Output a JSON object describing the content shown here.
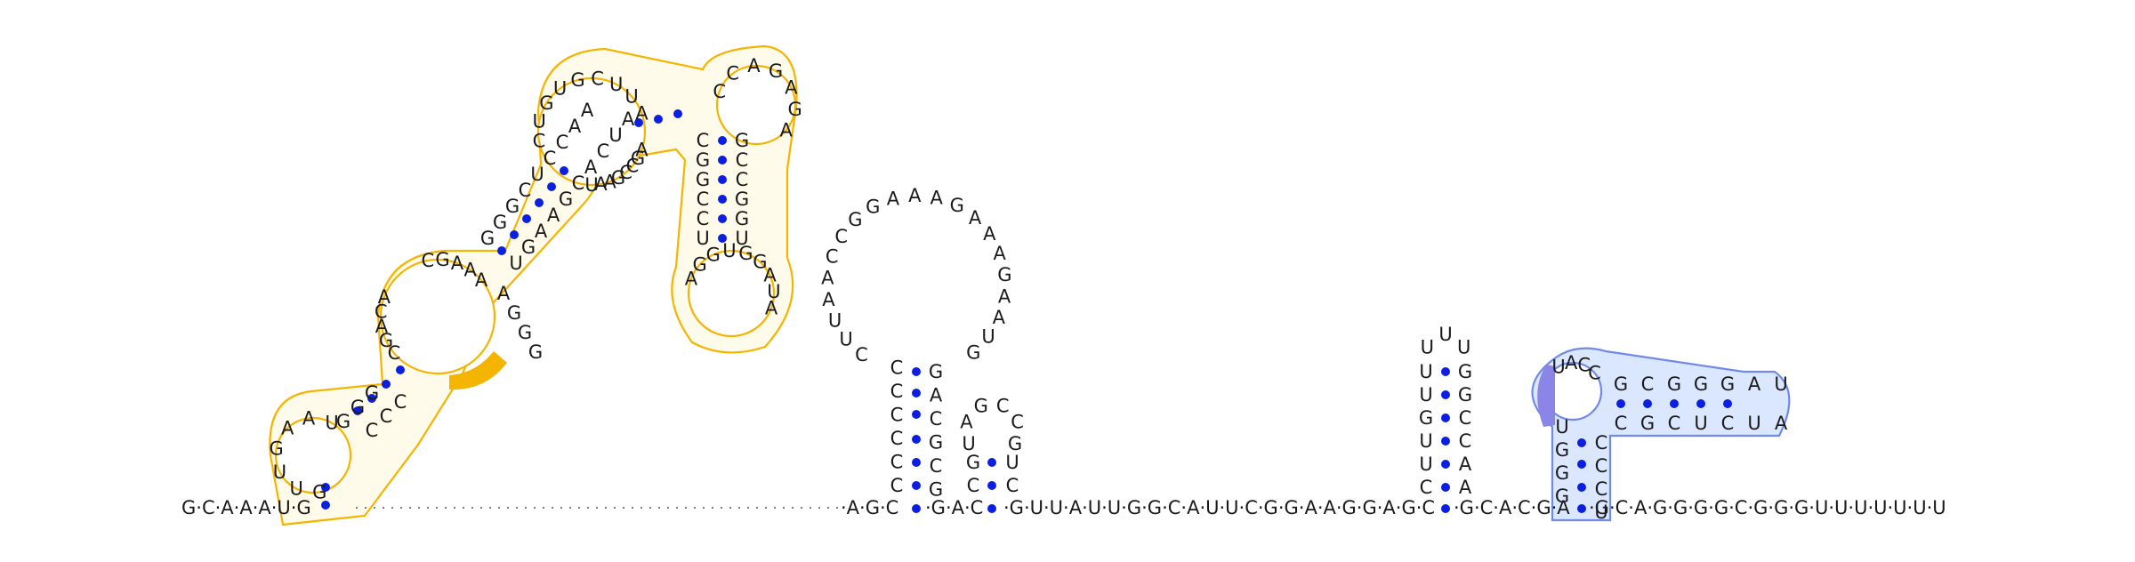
{
  "sequence_backbone": {
    "left_tail": "G·C·A·A·A·U·G",
    "mid_1": "·A·G·C",
    "mid_2": "·G·A·C",
    "mid_3": "·G·U·U·A·U·U·G·G·C·A·U·U·C·G·G·A·A·G·G·A·G·C",
    "mid_4": "·G·C·A·C·G·A",
    "right_tail": "·G·C·A·G·G·G·G·C·G·G·G·U·U·U·U·U·U·U"
  },
  "highlight_colors": {
    "domain_1": "#f4b400",
    "domain_1_fill": "#fffbea",
    "domain_2": "#6f8ae8",
    "domain_2_fill": "#dbe7ff",
    "pair_dot": "#0a1fe0"
  },
  "hairpin_1": {
    "stem_left": [
      "C",
      "C",
      "C",
      "C",
      "C",
      "C"
    ],
    "stem_right": [
      "G",
      "A",
      "C",
      "G",
      "C",
      "G"
    ],
    "loop": [
      "C",
      "U",
      "U",
      "A",
      "A",
      "C",
      "C",
      "G",
      "G",
      "A",
      "A",
      "A",
      "G",
      "A",
      "A",
      "A",
      "G",
      "A",
      "A",
      "U",
      "G"
    ]
  },
  "hairpin_2": {
    "stem": [
      "G",
      "C",
      "U",
      "C"
    ],
    "loop": [
      "U",
      "A",
      "G",
      "C",
      "C",
      "G"
    ]
  },
  "hairpin_3": {
    "stem_left": [
      "C",
      "U",
      "U",
      "G",
      "U",
      "U"
    ],
    "stem_right": [
      "G",
      "G",
      "C",
      "C",
      "A",
      "A"
    ],
    "loop": [
      "U",
      "U",
      "U"
    ]
  },
  "domain_1": {
    "outer_loop": [
      "G",
      "U",
      "U",
      "G",
      "A",
      "A",
      "U"
    ],
    "left_stem": [
      "G",
      "G",
      "G"
    ],
    "right_stem": [
      "C",
      "C",
      "C"
    ],
    "inner_left": [
      "A",
      "C",
      "A",
      "G",
      "C"
    ],
    "inner_top": [
      "C",
      "G",
      "A",
      "A",
      "A"
    ],
    "mid_stem_left": [
      "G",
      "G",
      "G",
      "C",
      "U",
      "C",
      "C",
      "A",
      "A"
    ],
    "mid_stem_right": [
      "U",
      "G",
      "A",
      "A",
      "G",
      "C",
      "A",
      "C",
      "U",
      "A"
    ],
    "upper_loop": [
      "C",
      "U",
      "G",
      "U",
      "G",
      "C",
      "U",
      "U",
      "A"
    ],
    "upper_inner": [
      "A",
      "G",
      "C",
      "C",
      "G",
      "A",
      "A",
      "U"
    ],
    "top_loop": [
      "C",
      "C",
      "A",
      "G",
      "A",
      "G",
      "A"
    ],
    "long_stem_left": [
      "C",
      "G",
      "G",
      "C",
      "C",
      "U"
    ],
    "long_stem_right": [
      "G",
      "C",
      "C",
      "G",
      "G",
      "U"
    ],
    "bottom_loop": [
      "A",
      "G",
      "G",
      "U",
      "G",
      "G",
      "A",
      "U",
      "A"
    ],
    "lower_right": [
      "A",
      "G",
      "G",
      "G"
    ]
  },
  "domain_2": {
    "stem_left": [
      "U",
      "G",
      "G",
      "G"
    ],
    "stem_right": [
      "C",
      "C",
      "C",
      "U"
    ],
    "loop_top": [
      "U",
      "A",
      "C",
      "C"
    ],
    "arm_top": [
      "G",
      "C",
      "G",
      "G",
      "G",
      "A",
      "U"
    ],
    "arm_bottom": [
      "C",
      "G",
      "C",
      "U",
      "C",
      "U",
      "A"
    ]
  }
}
